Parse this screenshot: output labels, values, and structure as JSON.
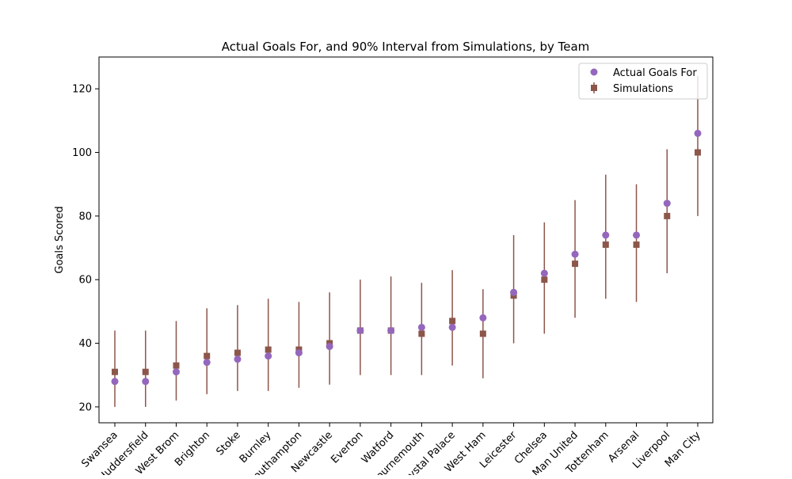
{
  "chart_data": {
    "type": "scatter",
    "title": "Actual Goals For, and 90% Interval from Simulations, by Team",
    "xlabel": "",
    "ylabel": "Goals Scored",
    "ylim": [
      15,
      130
    ],
    "yticks": [
      20,
      40,
      60,
      80,
      100,
      120
    ],
    "grid": false,
    "legend_position": "top-right",
    "categories": [
      "Swansea",
      "Huddersfield",
      "West Brom",
      "Brighton",
      "Stoke",
      "Burnley",
      "Southampton",
      "Newcastle",
      "Everton",
      "Watford",
      "Bournemouth",
      "Crystal Palace",
      "West Ham",
      "Leicester",
      "Chelsea",
      "Man United",
      "Tottenham",
      "Arsenal",
      "Liverpool",
      "Man City"
    ],
    "series": [
      {
        "name": "Actual Goals For",
        "marker": "circle",
        "color": "#9467bd",
        "values": [
          28,
          28,
          31,
          34,
          35,
          36,
          37,
          39,
          44,
          44,
          45,
          45,
          48,
          56,
          62,
          68,
          74,
          74,
          84,
          106
        ]
      },
      {
        "name": "Simulations",
        "marker": "square",
        "color": "#8c564b",
        "values": [
          31,
          31,
          33,
          36,
          37,
          38,
          38,
          40,
          44,
          44,
          43,
          47,
          43,
          55,
          60,
          65,
          71,
          71,
          80,
          100
        ],
        "lower": [
          20,
          20,
          22,
          24,
          25,
          25,
          26,
          27,
          30,
          30,
          30,
          33,
          29,
          40,
          43,
          48,
          54,
          53,
          62,
          80
        ],
        "upper": [
          44,
          44,
          47,
          51,
          52,
          54,
          53,
          56,
          60,
          61,
          59,
          63,
          57,
          74,
          78,
          85,
          93,
          90,
          101,
          124
        ]
      }
    ]
  }
}
